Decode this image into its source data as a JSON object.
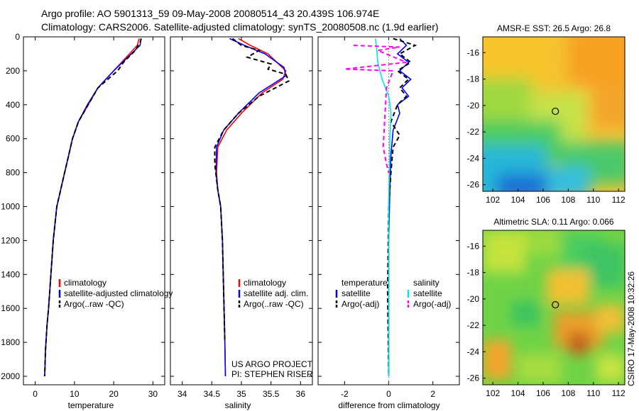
{
  "header": {
    "line1": "Argo profile: AO 5901313_59 09-May-2008 20080514_43 20.439S 106.974E",
    "line2": "Climatology: CARS2006. Satellite-adjusted climatology: synTS_20080508.nc (1.9d earlier)"
  },
  "side_label": "CSIRO 17-May-2008 10:32:26",
  "colors": {
    "red": "#ff0000",
    "blue": "#0000ff",
    "black": "#000000",
    "cyan": "#00e5ee",
    "magenta": "#ff00ff"
  },
  "chart_data": [
    {
      "type": "line",
      "name": "temperature-profile",
      "xlabel": "temperature",
      "xlim": [
        -3,
        33
      ],
      "ylim": [
        0,
        2050
      ],
      "y_reversed": true,
      "xticks": [
        0,
        10,
        20,
        30
      ],
      "yticks": [
        0,
        200,
        400,
        600,
        800,
        1000,
        1200,
        1400,
        1600,
        1800,
        2000
      ],
      "series": [
        {
          "name": "climatology",
          "color": "red",
          "x": [
            26.5,
            26.0,
            24.0,
            20.0,
            16.0,
            13.5,
            11.0,
            9.5,
            8.5,
            7.5,
            6.5,
            5.5,
            4.6,
            4.0,
            3.4,
            3.0,
            2.6,
            2.5,
            2.4
          ],
          "y": [
            10,
            50,
            100,
            200,
            300,
            400,
            500,
            600,
            700,
            800,
            900,
            1000,
            1200,
            1400,
            1600,
            1700,
            1850,
            1950,
            2000
          ]
        },
        {
          "name": "satellite-adjusted climatology",
          "color": "blue",
          "x": [
            27.0,
            26.7,
            24.5,
            20.0,
            16.0,
            13.3,
            11.0,
            9.5,
            8.5,
            7.5,
            6.5,
            5.5,
            4.6,
            4.0,
            3.4,
            3.0,
            2.6,
            2.5,
            2.4
          ],
          "y": [
            10,
            50,
            100,
            200,
            300,
            400,
            500,
            600,
            700,
            800,
            900,
            1000,
            1200,
            1400,
            1600,
            1700,
            1850,
            1950,
            2000
          ]
        },
        {
          "name": "Argo(..raw -QC)",
          "color": "black",
          "dash": true,
          "x": [
            27.0,
            26.8,
            25.5,
            22.5,
            21.0,
            16.0,
            13.5,
            11.0,
            9.5,
            8.5,
            7.5,
            6.5,
            5.5,
            4.6,
            4.0,
            3.4,
            3.0,
            2.6,
            2.4
          ],
          "y": [
            10,
            30,
            80,
            150,
            200,
            300,
            400,
            500,
            600,
            700,
            800,
            900,
            1000,
            1200,
            1400,
            1600,
            1700,
            1850,
            2000
          ]
        }
      ],
      "legend": [
        "climatology",
        "satellite-adjusted climatology",
        "Argo(..raw -QC)"
      ],
      "legend_position": "lower-right"
    },
    {
      "type": "line",
      "name": "salinity-profile",
      "xlabel": "salinity",
      "xlim": [
        33.8,
        36.2
      ],
      "ylim": [
        0,
        2050
      ],
      "y_reversed": true,
      "xticks": [
        34,
        34.5,
        35,
        35.5,
        36
      ],
      "series": [
        {
          "name": "climatology",
          "color": "red",
          "x": [
            34.95,
            35.15,
            35.45,
            35.75,
            35.7,
            35.35,
            35.0,
            34.75,
            34.6,
            34.58,
            34.6,
            34.65,
            34.68,
            34.7,
            34.72,
            34.73
          ],
          "y": [
            10,
            50,
            100,
            200,
            250,
            330,
            450,
            550,
            650,
            800,
            900,
            1000,
            1200,
            1500,
            1800,
            2000
          ]
        },
        {
          "name": "satellite adj. clim.",
          "color": "blue",
          "x": [
            34.8,
            35.05,
            35.4,
            35.72,
            35.75,
            35.3,
            34.95,
            34.7,
            34.58,
            34.57,
            34.6,
            34.65,
            34.68,
            34.7,
            34.72,
            34.73
          ],
          "y": [
            10,
            50,
            100,
            180,
            230,
            330,
            450,
            550,
            650,
            800,
            900,
            1000,
            1200,
            1500,
            1800,
            2000
          ]
        },
        {
          "name": "Argo(..raw -QC)",
          "color": "black",
          "dash": true,
          "x": [
            34.85,
            35.0,
            35.3,
            35.1,
            35.5,
            35.45,
            35.75,
            35.8,
            35.3,
            34.95,
            34.7,
            34.55,
            34.55,
            34.6,
            34.65,
            34.68,
            34.7,
            34.72
          ],
          "y": [
            10,
            50,
            80,
            120,
            160,
            190,
            220,
            260,
            350,
            450,
            550,
            650,
            750,
            900,
            1000,
            1200,
            1500,
            1800
          ]
        }
      ],
      "legend": [
        "climatology",
        "satellite adj. clim.",
        "Argo(..raw -QC)"
      ],
      "annotation": [
        "US ARGO PROJECT",
        "PI: STEPHEN RISER"
      ]
    },
    {
      "type": "line",
      "name": "difference-profile",
      "xlabel": "difference from climatology",
      "xlim": [
        -3.2,
        3.2
      ],
      "ylim": [
        0,
        2050
      ],
      "y_reversed": true,
      "xticks": [
        -2,
        0,
        2
      ],
      "series": [
        {
          "name": "temperature satellite",
          "color": "blue",
          "x": [
            0.5,
            0.8,
            0.4,
            0.9,
            0.5,
            1.0,
            0.6,
            0.9,
            0.4,
            0.5,
            0.2,
            0.1,
            0.05,
            0.0,
            0.0
          ],
          "y": [
            10,
            50,
            100,
            150,
            200,
            250,
            300,
            350,
            400,
            450,
            550,
            700,
            900,
            1200,
            2000
          ]
        },
        {
          "name": "temperature Argo(-adj)",
          "color": "black",
          "dash": true,
          "x": [
            0.2,
            1.2,
            0.5,
            1.0,
            0.4,
            0.9,
            0.5,
            0.8,
            0.4,
            0.1,
            0.5,
            0.2,
            0.1,
            0.0,
            -0.05,
            0.0
          ],
          "y": [
            10,
            50,
            100,
            150,
            200,
            250,
            300,
            350,
            400,
            500,
            580,
            650,
            800,
            1000,
            1500,
            2000
          ]
        },
        {
          "name": "salinity satellite",
          "color": "cyan",
          "x": [
            -0.6,
            -0.55,
            -0.5,
            -0.3,
            0.0,
            0.1,
            0.05,
            0.0,
            0.0
          ],
          "y": [
            10,
            60,
            150,
            250,
            350,
            450,
            600,
            1000,
            2000
          ]
        },
        {
          "name": "salinity Argo(-adj)",
          "color": "magenta",
          "dash": true,
          "x": [
            -1.6,
            0.5,
            -0.5,
            0.8,
            -2.0,
            0.2,
            -0.1,
            -0.25,
            -0.1,
            0.0
          ],
          "y": [
            50,
            60,
            80,
            150,
            190,
            200,
            300,
            650,
            750,
            800
          ]
        }
      ],
      "legend_titles": [
        "temperature",
        "salinity"
      ],
      "legend": [
        "satellite",
        "Argo(-adj)",
        "satellite",
        "Argo(-adj)"
      ]
    }
  ],
  "maps": [
    {
      "title": "AMSR-E SST: 26.5 Argo: 26.8",
      "xticks": [
        102,
        104,
        106,
        108,
        110,
        112
      ],
      "yticks": [
        -16,
        -18,
        -20,
        -22,
        -24,
        -26
      ],
      "xlim": [
        101.2,
        112.5
      ],
      "ylim": [
        -26.5,
        -14.8
      ],
      "marker": [
        106.974,
        -20.439
      ]
    },
    {
      "title": "Altimetric SLA: 0.11 Argo: 0.066",
      "xticks": [
        102,
        104,
        106,
        108,
        110,
        112
      ],
      "yticks": [
        -16,
        -18,
        -20,
        -22,
        -24,
        -26
      ],
      "xlim": [
        101.2,
        112.5
      ],
      "ylim": [
        -26.5,
        -14.8
      ],
      "marker": [
        106.974,
        -20.439
      ]
    }
  ]
}
